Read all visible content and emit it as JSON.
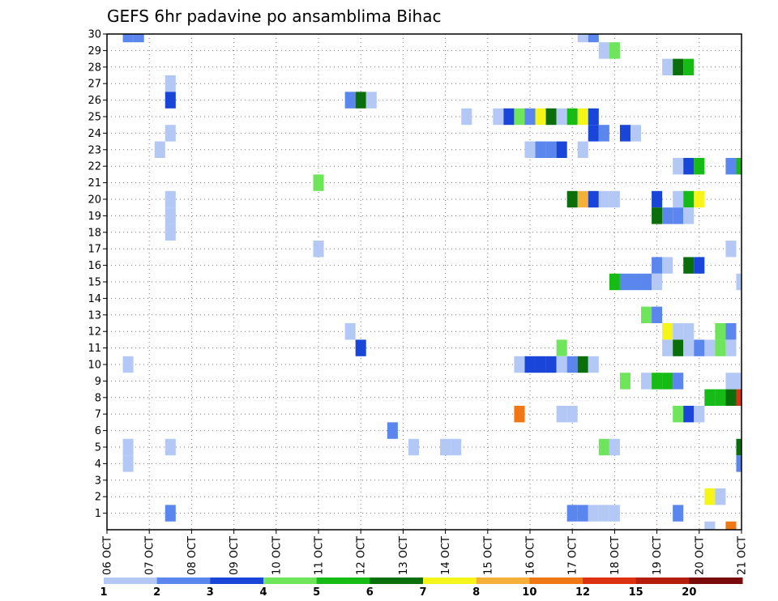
{
  "chart_data": {
    "type": "heatmap",
    "title": "GEFS 6hr padavine po ansamblima Bihac",
    "xlabel": "",
    "ylabel": "",
    "x_tick_labels": [
      "06 OCT",
      "07 OCT",
      "08 OCT",
      "09 OCT",
      "10 OCT",
      "11 OCT",
      "12 OCT",
      "13 OCT",
      "14 OCT",
      "15 OCT",
      "16 OCT",
      "17 OCT",
      "18 OCT",
      "19 OCT",
      "20 OCT",
      "21 OCT"
    ],
    "y_tick_labels": [
      "1",
      "2",
      "3",
      "4",
      "5",
      "6",
      "7",
      "8",
      "9",
      "10",
      "11",
      "12",
      "13",
      "14",
      "15",
      "16",
      "17",
      "18",
      "19",
      "20",
      "21",
      "22",
      "23",
      "24",
      "25",
      "26",
      "27",
      "28",
      "29",
      "30"
    ],
    "colorbar": {
      "labels": [
        "1",
        "2",
        "3",
        "4",
        "5",
        "6",
        "7",
        "8",
        "10",
        "12",
        "15",
        "20"
      ],
      "colors": [
        "#b3c8f5",
        "#5a86ee",
        "#1946d8",
        "#6ee55a",
        "#16bb16",
        "#0a6e0a",
        "#f5f51a",
        "#f5b03a",
        "#f07814",
        "#dc3212",
        "#b41e0a",
        "#780a0a"
      ]
    },
    "cell_legend": "Each cell: day offset from 06 OCT (in 6-hour steps, 0.25 = 6h), ensemble member, colour class index 0-11 matching colorbar",
    "cells": [
      [
        0.5,
        30,
        1
      ],
      [
        0.75,
        30,
        1
      ],
      [
        11.25,
        30,
        0
      ],
      [
        11.5,
        30,
        1
      ],
      [
        11.75,
        29,
        0
      ],
      [
        12.0,
        29,
        3
      ],
      [
        13.25,
        28,
        0
      ],
      [
        13.5,
        28,
        5
      ],
      [
        13.75,
        28,
        4
      ],
      [
        1.5,
        27,
        0
      ],
      [
        1.5,
        26,
        2
      ],
      [
        5.75,
        26,
        1
      ],
      [
        6.0,
        26,
        5
      ],
      [
        6.25,
        26,
        0
      ],
      [
        8.5,
        25,
        0
      ],
      [
        9.25,
        25,
        0
      ],
      [
        9.5,
        25,
        2
      ],
      [
        9.75,
        25,
        3
      ],
      [
        10.0,
        25,
        1
      ],
      [
        10.25,
        25,
        6
      ],
      [
        10.5,
        25,
        5
      ],
      [
        10.75,
        25,
        0
      ],
      [
        11.0,
        25,
        4
      ],
      [
        11.25,
        25,
        6
      ],
      [
        11.5,
        25,
        2
      ],
      [
        1.5,
        24,
        0
      ],
      [
        11.5,
        24,
        2
      ],
      [
        11.75,
        24,
        1
      ],
      [
        12.25,
        24,
        2
      ],
      [
        12.5,
        24,
        0
      ],
      [
        1.25,
        23,
        0
      ],
      [
        10.0,
        23,
        0
      ],
      [
        10.25,
        23,
        1
      ],
      [
        10.5,
        23,
        1
      ],
      [
        10.75,
        23,
        2
      ],
      [
        11.25,
        23,
        0
      ],
      [
        13.5,
        22,
        0
      ],
      [
        13.75,
        22,
        2
      ],
      [
        14.0,
        22,
        4
      ],
      [
        14.75,
        22,
        1
      ],
      [
        15.0,
        22,
        4
      ],
      [
        5.0,
        21,
        3
      ],
      [
        1.5,
        20,
        0
      ],
      [
        11.0,
        20,
        5
      ],
      [
        11.25,
        20,
        7
      ],
      [
        11.5,
        20,
        2
      ],
      [
        11.75,
        20,
        0
      ],
      [
        12.0,
        20,
        0
      ],
      [
        13.0,
        20,
        2
      ],
      [
        13.5,
        20,
        0
      ],
      [
        13.75,
        20,
        4
      ],
      [
        14.0,
        20,
        6
      ],
      [
        1.5,
        19,
        0
      ],
      [
        13.0,
        19,
        5
      ],
      [
        13.25,
        19,
        1
      ],
      [
        13.5,
        19,
        1
      ],
      [
        13.75,
        19,
        0
      ],
      [
        1.5,
        18,
        0
      ],
      [
        5.0,
        17,
        0
      ],
      [
        14.75,
        17,
        0
      ],
      [
        13.0,
        16,
        1
      ],
      [
        13.25,
        16,
        0
      ],
      [
        13.75,
        16,
        5
      ],
      [
        14.0,
        16,
        2
      ],
      [
        12.0,
        15,
        4
      ],
      [
        12.25,
        15,
        1
      ],
      [
        12.5,
        15,
        1
      ],
      [
        12.75,
        15,
        1
      ],
      [
        13.0,
        15,
        0
      ],
      [
        15.0,
        15,
        0
      ],
      [
        12.75,
        13,
        3
      ],
      [
        13.0,
        13,
        1
      ],
      [
        5.75,
        12,
        0
      ],
      [
        13.25,
        12,
        6
      ],
      [
        13.5,
        12,
        0
      ],
      [
        13.75,
        12,
        0
      ],
      [
        14.5,
        12,
        3
      ],
      [
        14.75,
        12,
        1
      ],
      [
        6.0,
        11,
        2
      ],
      [
        10.75,
        11,
        3
      ],
      [
        13.25,
        11,
        0
      ],
      [
        13.5,
        11,
        5
      ],
      [
        13.75,
        11,
        0
      ],
      [
        14.0,
        11,
        1
      ],
      [
        14.25,
        11,
        0
      ],
      [
        14.5,
        11,
        3
      ],
      [
        14.75,
        11,
        0
      ],
      [
        0.5,
        10,
        0
      ],
      [
        9.75,
        10,
        0
      ],
      [
        10.0,
        10,
        2
      ],
      [
        10.25,
        10,
        2
      ],
      [
        10.5,
        10,
        2
      ],
      [
        10.75,
        10,
        0
      ],
      [
        11.0,
        10,
        1
      ],
      [
        11.25,
        10,
        5
      ],
      [
        11.5,
        10,
        0
      ],
      [
        12.25,
        9,
        3
      ],
      [
        12.75,
        9,
        0
      ],
      [
        13.0,
        9,
        4
      ],
      [
        13.25,
        9,
        4
      ],
      [
        13.5,
        9,
        1
      ],
      [
        14.75,
        9,
        0
      ],
      [
        15.0,
        9,
        0
      ],
      [
        14.25,
        8,
        4
      ],
      [
        14.5,
        8,
        4
      ],
      [
        14.75,
        8,
        5
      ],
      [
        15.0,
        8,
        9
      ],
      [
        9.75,
        7,
        8
      ],
      [
        10.75,
        7,
        0
      ],
      [
        11.0,
        7,
        0
      ],
      [
        13.5,
        7,
        3
      ],
      [
        13.75,
        7,
        2
      ],
      [
        14.0,
        7,
        0
      ],
      [
        6.75,
        6,
        1
      ],
      [
        0.5,
        5,
        0
      ],
      [
        1.5,
        5,
        0
      ],
      [
        7.25,
        5,
        0
      ],
      [
        8.0,
        5,
        0
      ],
      [
        8.25,
        5,
        0
      ],
      [
        11.75,
        5,
        3
      ],
      [
        12.0,
        5,
        0
      ],
      [
        15.0,
        5,
        5
      ],
      [
        0.5,
        4,
        0
      ],
      [
        15.0,
        4,
        1
      ],
      [
        14.25,
        2,
        6
      ],
      [
        14.5,
        2,
        0
      ],
      [
        1.5,
        1,
        1
      ],
      [
        11.0,
        1,
        1
      ],
      [
        11.25,
        1,
        1
      ],
      [
        11.5,
        1,
        0
      ],
      [
        11.75,
        1,
        0
      ],
      [
        12.0,
        1,
        0
      ],
      [
        13.5,
        1,
        1
      ],
      [
        14.25,
        0,
        0
      ],
      [
        14.75,
        0,
        8
      ]
    ]
  }
}
